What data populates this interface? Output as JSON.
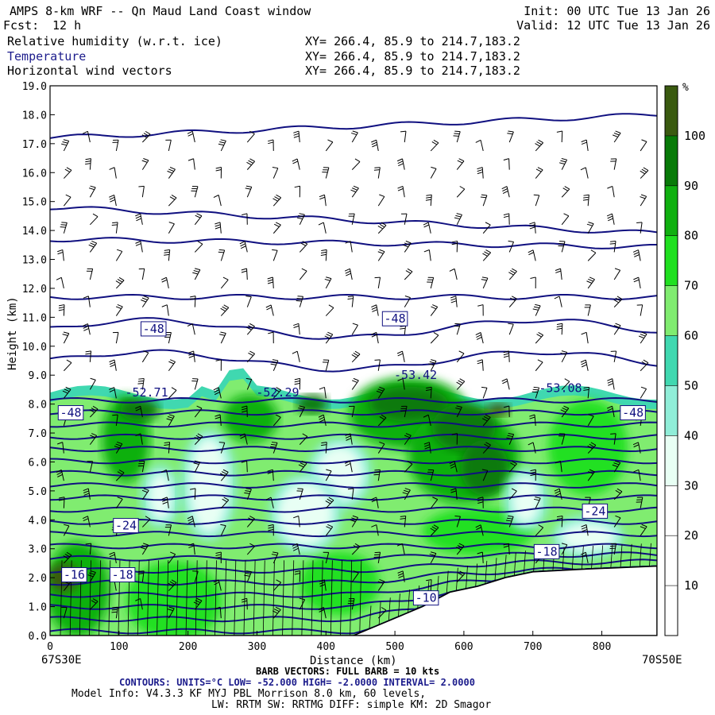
{
  "header": {
    "title": "AMPS 8-km WRF -- Qn Maud Land Coast window",
    "fcst_label": "Fcst:",
    "fcst_value": "12 h",
    "init": "Init: 00 UTC Tue 13 Jan 26",
    "valid": "Valid: 12 UTC Tue 13 Jan 26",
    "fields": [
      {
        "name": "Relative humidity (w.r.t. ice)",
        "xy": "XY= 266.4, 85.9 to 214.7,183.2",
        "color": "#000000"
      },
      {
        "name": "Temperature",
        "xy": "XY= 266.4, 85.9 to 214.7,183.2",
        "color": "#1c1c8c"
      },
      {
        "name": "Horizontal wind vectors",
        "xy": "XY= 266.4, 85.9 to 214.7,183.2",
        "color": "#000000"
      }
    ]
  },
  "chart_data": {
    "type": "heatmap",
    "ylabel": "Height (km)",
    "xlabel": "Distance (km)",
    "xlim": [
      0,
      880
    ],
    "ylim": [
      0,
      19
    ],
    "x_ticks": [
      0,
      100,
      200,
      300,
      400,
      500,
      600,
      700,
      800
    ],
    "y_ticks": [
      "0.0",
      "1.0",
      "2.0",
      "3.0",
      "4.0",
      "5.0",
      "6.0",
      "7.0",
      "8.0",
      "9.0",
      "10.0",
      "11.0",
      "12.0",
      "13.0",
      "14.0",
      "15.0",
      "16.0",
      "17.0",
      "18.0",
      "19.0"
    ],
    "x_left_label": "67S30E",
    "x_right_label": "70S50E",
    "colorbar": {
      "unit": "%",
      "levels": [
        10,
        20,
        30,
        40,
        50,
        60,
        70,
        80,
        90,
        100
      ],
      "colors": [
        "#ffffff",
        "#ffffff",
        "#ffffff",
        "#e8fff4",
        "#90eed8",
        "#40d8b0",
        "#80ec70",
        "#20e020",
        "#10b010",
        "#087a08",
        "#3a5a10"
      ]
    },
    "temperature_labels": [
      {
        "text": "-48",
        "x": 150,
        "y": 10.6,
        "boxed": true
      },
      {
        "text": "-48",
        "x": 500,
        "y": 10.95,
        "boxed": true
      },
      {
        "text": "-53.42",
        "x": 530,
        "y": 9.0,
        "boxed": false
      },
      {
        "text": "-52.71",
        "x": 140,
        "y": 8.4,
        "boxed": false
      },
      {
        "text": "-52.29",
        "x": 330,
        "y": 8.4,
        "boxed": false
      },
      {
        "text": "-53.08",
        "x": 740,
        "y": 8.55,
        "boxed": false
      },
      {
        "text": "-48",
        "x": 30,
        "y": 7.7,
        "boxed": true
      },
      {
        "text": "-48",
        "x": 845,
        "y": 7.7,
        "boxed": true
      },
      {
        "text": "-24",
        "x": 110,
        "y": 3.8,
        "boxed": true
      },
      {
        "text": "-24",
        "x": 790,
        "y": 4.3,
        "boxed": true
      },
      {
        "text": "-16",
        "x": 35,
        "y": 2.1,
        "boxed": true
      },
      {
        "text": "-18",
        "x": 105,
        "y": 2.1,
        "boxed": true
      },
      {
        "text": "-18",
        "x": 720,
        "y": 2.9,
        "boxed": true
      },
      {
        "text": "-10",
        "x": 545,
        "y": 1.3,
        "boxed": true
      }
    ],
    "terrain": [
      [
        0,
        0
      ],
      [
        440,
        0
      ],
      [
        470,
        0.3
      ],
      [
        500,
        0.6
      ],
      [
        540,
        1.0
      ],
      [
        580,
        1.5
      ],
      [
        620,
        1.7
      ],
      [
        660,
        2.0
      ],
      [
        700,
        2.2
      ],
      [
        780,
        2.3
      ],
      [
        880,
        2.4
      ]
    ]
  },
  "footer": {
    "barb": "BARB VECTORS: FULL BARB = 10 kts",
    "contours": "CONTOURS: UNITS=°C LOW= -52.000 HIGH= -2.0000 INTERVAL= 2.0000",
    "model1": "Model Info: V4.3.3 KF MYJ PBL Morrison 8.0 km, 60 levels,",
    "model2": "LW: RRTM SW: RRTMG DIFF: simple KM: 2D Smagor"
  }
}
